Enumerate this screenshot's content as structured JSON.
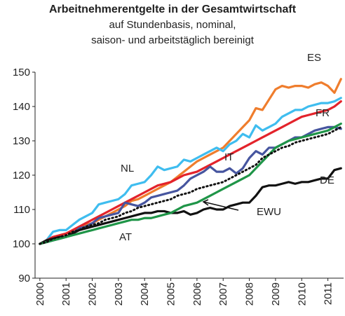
{
  "chart_data": {
    "type": "line",
    "title": "Arbeitnehmerentgelte in der Gesamtwirtschaft",
    "subtitle": [
      "auf Stundenbasis, nominal,",
      "saison- und arbeitstäglich bereinigt"
    ],
    "x": [
      2000,
      2000.25,
      2000.5,
      2000.75,
      2001,
      2001.25,
      2001.5,
      2001.75,
      2002,
      2002.25,
      2002.5,
      2002.75,
      2003,
      2003.25,
      2003.5,
      2003.75,
      2004,
      2004.25,
      2004.5,
      2004.75,
      2005,
      2005.25,
      2005.5,
      2005.75,
      2006,
      2006.25,
      2006.5,
      2006.75,
      2007,
      2007.25,
      2007.5,
      2007.75,
      2008,
      2008.25,
      2008.5,
      2008.75,
      2009,
      2009.25,
      2009.5,
      2009.75,
      2010,
      2010.25,
      2010.5,
      2010.75,
      2011,
      2011.25,
      2011.5
    ],
    "series": [
      {
        "name": "ES",
        "color": "#ef7d2d",
        "values": [
          100,
          100.5,
          101.5,
          102.5,
          103,
          103.5,
          104.5,
          105.5,
          106,
          107,
          108,
          109,
          110,
          111,
          112.5,
          113,
          114,
          115,
          116,
          117,
          118,
          119.5,
          121,
          122.5,
          124,
          125,
          126,
          127,
          128,
          130,
          132,
          134,
          136,
          139.5,
          139,
          142,
          145,
          146,
          145.5,
          146,
          146,
          145.5,
          146.5,
          147,
          146,
          144,
          148
        ]
      },
      {
        "name": "NL",
        "color": "#3fbdef",
        "values": [
          100,
          101,
          103.5,
          104,
          104,
          105.5,
          107,
          108,
          109,
          111.5,
          112,
          112.5,
          113,
          114.5,
          117,
          117.5,
          118,
          120,
          122.5,
          121.5,
          122,
          122.5,
          124.5,
          124,
          125,
          126,
          127,
          128,
          127,
          129,
          130,
          132,
          131,
          134.5,
          133,
          134,
          135,
          137,
          138,
          139,
          139,
          140,
          140.5,
          141,
          141,
          141.5,
          142.5
        ]
      },
      {
        "name": "FR",
        "color": "#e3232b",
        "values": [
          100,
          101,
          102,
          102.5,
          103,
          104,
          105,
          106,
          107,
          108,
          109,
          110,
          111,
          112,
          113,
          114,
          115,
          116,
          117,
          117.5,
          118,
          119,
          120,
          120.5,
          121,
          122,
          123,
          124,
          125,
          126,
          127,
          128,
          129,
          130,
          131,
          132,
          133,
          134,
          135,
          136,
          137,
          137.5,
          138,
          138.5,
          139,
          140,
          141.5
        ]
      },
      {
        "name": "IT",
        "color": "#46559f",
        "values": [
          100,
          100.5,
          101,
          101.5,
          102,
          103,
          104.5,
          105,
          106,
          107.5,
          108,
          108.5,
          109,
          112,
          111.5,
          111,
          112,
          113.5,
          114,
          114.5,
          115,
          115.5,
          117,
          119,
          120,
          121,
          122.5,
          121,
          121,
          122,
          120.5,
          122,
          125,
          127,
          126,
          128,
          128,
          129,
          130,
          131,
          131,
          132,
          133,
          133.5,
          134,
          134,
          133.5
        ]
      },
      {
        "name": "DE",
        "color": "#111111",
        "values": [
          100,
          101,
          101.5,
          102,
          102,
          103,
          104,
          104.5,
          105,
          105.5,
          106,
          106.5,
          107,
          107.5,
          108,
          108.5,
          109,
          109,
          109.5,
          109.5,
          109,
          109,
          109.5,
          108.5,
          109,
          110,
          110.5,
          110,
          110,
          111,
          111.5,
          112,
          112,
          114,
          116.5,
          117,
          117,
          117.5,
          118,
          117.5,
          118,
          118,
          118.5,
          119,
          119,
          121.5,
          122
        ]
      },
      {
        "name": "AT",
        "color": "#1f9548",
        "values": [
          100,
          100.5,
          101,
          101.5,
          102,
          102.5,
          103,
          103.5,
          104,
          104.5,
          105,
          105.5,
          106,
          106.5,
          107,
          107,
          107.5,
          107.5,
          108,
          108.5,
          109,
          110,
          111,
          111.5,
          112,
          113,
          114,
          115,
          116,
          117,
          118,
          119,
          120,
          122,
          124,
          126,
          128,
          129,
          130,
          130.5,
          131,
          131.5,
          132,
          132.5,
          133,
          134,
          135
        ]
      },
      {
        "name": "EWU",
        "color": "#111111",
        "dashed": true,
        "values": [
          100,
          100.5,
          101.5,
          102,
          102.5,
          103.5,
          104,
          105,
          105.5,
          106,
          107,
          107.5,
          108,
          109,
          109.5,
          110.5,
          111,
          111.5,
          112,
          112.5,
          113,
          114,
          114.5,
          115,
          116,
          116.5,
          117,
          117.5,
          118,
          119,
          120,
          121,
          122,
          123,
          125,
          126,
          127,
          128,
          128.5,
          129.5,
          130,
          130.5,
          131,
          131.5,
          132,
          133,
          134
        ]
      }
    ],
    "xlim": [
      1999.95,
      2011.6
    ],
    "xticks": [
      2000,
      2001,
      2002,
      2003,
      2004,
      2005,
      2006,
      2007,
      2008,
      2009,
      2010,
      2011
    ],
    "ylim": [
      90,
      150
    ],
    "yticks": [
      90,
      100,
      110,
      120,
      130,
      140,
      150
    ]
  }
}
